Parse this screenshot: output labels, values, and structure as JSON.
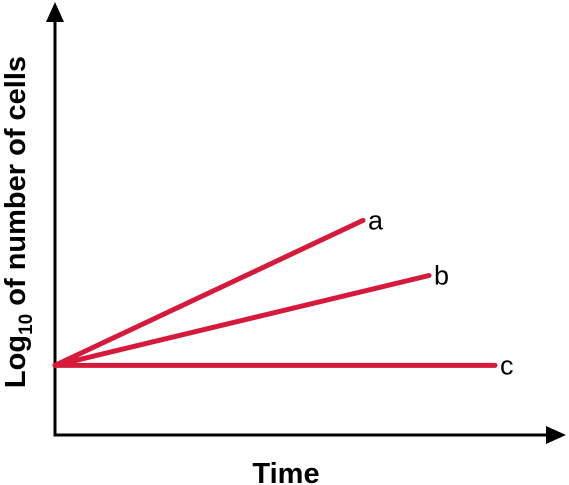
{
  "chart_data": {
    "type": "line",
    "title": "",
    "xlabel": "Time",
    "ylabel": {
      "prefix": "Log",
      "subscript": "10",
      "suffix": " of number of cells"
    },
    "xlim": [
      0,
      100
    ],
    "ylim": [
      0,
      100
    ],
    "grid": false,
    "legend": "none",
    "line_color": "#d61a3c",
    "axis_color": "#000000",
    "series": [
      {
        "name": "a",
        "x": [
          0,
          70
        ],
        "y": [
          24,
          74
        ]
      },
      {
        "name": "b",
        "x": [
          0,
          85
        ],
        "y": [
          24,
          55
        ]
      },
      {
        "name": "c",
        "x": [
          0,
          100
        ],
        "y": [
          24,
          24
        ]
      }
    ]
  }
}
